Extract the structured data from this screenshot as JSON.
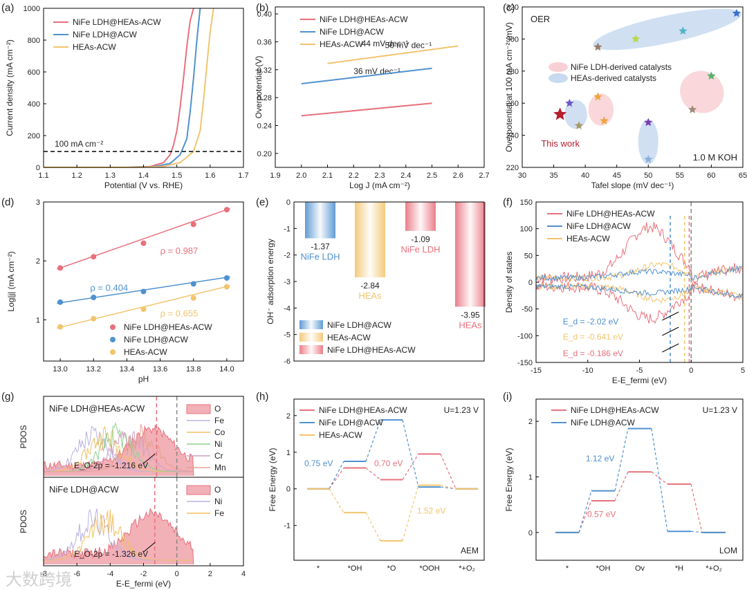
{
  "colors": {
    "red": "#e8707c",
    "blue": "#4f91cf",
    "yellow": "#f2c46d",
    "black": "#000000"
  },
  "chart_data": [
    {
      "panel": "(a)",
      "type": "line",
      "xlabel": "Potential (V vs. RHE)",
      "ylabel": "Current density (mA cm⁻²)",
      "xlim": [
        1.1,
        1.7
      ],
      "ylim": [
        0,
        1000
      ],
      "xticks": [
        "1.1",
        "1.2",
        "1.3",
        "1.4",
        "1.5",
        "1.6",
        "1.7"
      ],
      "yticks": [
        "0",
        "200",
        "400",
        "600",
        "800",
        "1000"
      ],
      "legend": [
        "NiFe LDH@HEAs-ACW",
        "NiFe LDH@ACW",
        "HEAs-ACW"
      ],
      "annotation": "100 mA cm⁻²",
      "reference_line_y": 100,
      "series": [
        {
          "name": "NiFe LDH@HEAs-ACW",
          "color": "red",
          "x": [
            1.1,
            1.35,
            1.42,
            1.46,
            1.48,
            1.49,
            1.5,
            1.51,
            1.52,
            1.53,
            1.54,
            1.55
          ],
          "y": [
            0,
            0,
            5,
            30,
            80,
            140,
            230,
            380,
            560,
            760,
            920,
            1000
          ]
        },
        {
          "name": "NiFe LDH@ACW",
          "color": "blue",
          "x": [
            1.1,
            1.35,
            1.43,
            1.48,
            1.51,
            1.53,
            1.54,
            1.55,
            1.56,
            1.57
          ],
          "y": [
            0,
            0,
            4,
            25,
            80,
            180,
            350,
            560,
            800,
            1000
          ]
        },
        {
          "name": "HEAs-ACW",
          "color": "yellow",
          "x": [
            1.1,
            1.38,
            1.46,
            1.51,
            1.55,
            1.57,
            1.58,
            1.59,
            1.6,
            1.61
          ],
          "y": [
            0,
            0,
            6,
            30,
            100,
            230,
            420,
            640,
            850,
            1000
          ]
        }
      ]
    },
    {
      "panel": "(b)",
      "type": "line",
      "xlabel": "Log J (mA cm⁻²)",
      "ylabel": "Overpotential (V)",
      "xlim": [
        1.9,
        2.7
      ],
      "ylim": [
        0.18,
        0.41
      ],
      "xticks": [
        "1.9",
        "2.0",
        "2.1",
        "2.2",
        "2.3",
        "2.4",
        "2.5",
        "2.6",
        "2.7"
      ],
      "yticks": [
        "0.20",
        "0.24",
        "0.28",
        "0.32",
        "0.36",
        "0.40"
      ],
      "legend": [
        "NiFe LDH@HEAs-ACW",
        "NiFe LDH@ACW",
        "HEAs-ACW"
      ],
      "series": [
        {
          "name": "NiFe LDH@HEAs-ACW",
          "color": "red",
          "x": [
            2.0,
            2.5
          ],
          "y": [
            0.254,
            0.272
          ],
          "label": "36 mV dec⁻¹"
        },
        {
          "name": "NiFe LDH@ACW",
          "color": "blue",
          "x": [
            2.0,
            2.5
          ],
          "y": [
            0.3,
            0.322
          ],
          "label": "44 mV dec⁻¹"
        },
        {
          "name": "HEAs-ACW",
          "color": "yellow",
          "x": [
            2.1,
            2.6
          ],
          "y": [
            0.329,
            0.354
          ],
          "label": "50 mV dec⁻¹"
        }
      ]
    },
    {
      "panel": "(c)",
      "type": "scatter",
      "xlabel": "Tafel slope (mV dec⁻¹)",
      "ylabel": "Overpotential at 100 mA cm⁻² (mV)",
      "xlim": [
        30,
        65
      ],
      "ylim": [
        220,
        320
      ],
      "xticks": [
        "30",
        "35",
        "40",
        "45",
        "50",
        "55",
        "60",
        "65"
      ],
      "yticks": [
        "220",
        "240",
        "260",
        "280",
        "300",
        "320"
      ],
      "texts": [
        "OER",
        "1.0 M KOH",
        "This work"
      ],
      "legend": [
        "NiFe LDH-derived catalysts",
        "HEAs-derived catalysts"
      ],
      "points": [
        {
          "x": 36,
          "y": 253,
          "color": "#b51f2e",
          "main": true
        },
        {
          "x": 37.5,
          "y": 260,
          "color": "#6a5acd"
        },
        {
          "x": 39,
          "y": 246,
          "color": "#a89a6a"
        },
        {
          "x": 42,
          "y": 264,
          "color": "#f0a53c"
        },
        {
          "x": 43,
          "y": 249,
          "color": "#f0a53c"
        },
        {
          "x": 42,
          "y": 295,
          "color": "#9a7b6a"
        },
        {
          "x": 48,
          "y": 300,
          "color": "#b9d84a"
        },
        {
          "x": 50,
          "y": 248,
          "color": "#7a3fb5"
        },
        {
          "x": 50,
          "y": 225,
          "color": "#8ab0d8"
        },
        {
          "x": 55.5,
          "y": 305,
          "color": "#4fb6c8"
        },
        {
          "x": 57,
          "y": 256,
          "color": "#a08a7a"
        },
        {
          "x": 60,
          "y": 277,
          "color": "#56b36a"
        },
        {
          "x": 64,
          "y": 316,
          "color": "#3a6fd0"
        }
      ]
    },
    {
      "panel": "(d)",
      "type": "scatter",
      "xlabel": "pH",
      "ylabel": "Log|j| (mA cm⁻²)",
      "xlim": [
        12.9,
        14.1
      ],
      "ylim": [
        0.3,
        3.0
      ],
      "xticks": [
        "13.0",
        "13.2",
        "13.4",
        "13.6",
        "13.8",
        "14.0"
      ],
      "yticks": [
        "1",
        "2",
        "3"
      ],
      "legend": [
        "NiFe LDH@HEAs-ACW",
        "NiFe LDH@ACW",
        "HEAs-ACW"
      ],
      "series": [
        {
          "name": "NiFe LDH@HEAs-ACW",
          "color": "red",
          "x": [
            13.0,
            13.2,
            13.5,
            13.8,
            14.0
          ],
          "y": [
            1.88,
            2.07,
            2.3,
            2.62,
            2.87
          ],
          "label": "ρ = 0.987"
        },
        {
          "name": "NiFe LDH@ACW",
          "color": "blue",
          "x": [
            13.0,
            13.2,
            13.5,
            13.8,
            14.0
          ],
          "y": [
            1.3,
            1.38,
            1.48,
            1.61,
            1.71
          ],
          "label": "ρ = 0.404"
        },
        {
          "name": "HEAs-ACW",
          "color": "yellow",
          "x": [
            13.0,
            13.2,
            13.5,
            13.8,
            14.0
          ],
          "y": [
            0.88,
            1.02,
            1.18,
            1.37,
            1.56
          ],
          "label": "ρ = 0.655"
        }
      ]
    },
    {
      "panel": "(e)",
      "type": "bar",
      "ylabel": "OH⁻ adsorption energy",
      "ylim": [
        -6,
        0
      ],
      "yticks": [
        "0",
        "-1",
        "-2",
        "-3",
        "-4",
        "-5",
        "-6"
      ],
      "categories": [
        "NiFe LDH",
        "HEAs",
        "NiFe LDH",
        "HEAs"
      ],
      "values": [
        -1.37,
        -2.84,
        -1.09,
        -3.95
      ],
      "value_labels": [
        "-1.37",
        "-2.84",
        "-1.09",
        "-3.95"
      ],
      "bar_colors": [
        "blue",
        "yellow",
        "red",
        "red"
      ],
      "legend": [
        "NiFe LDH@ACW",
        "HEAs-ACW",
        "NiFe LDH@HEAs-ACW"
      ]
    },
    {
      "panel": "(f)",
      "type": "line",
      "xlabel": "E-E_fermi (eV)",
      "ylabel": "Density of states",
      "xlim": [
        -15,
        5
      ],
      "ylim": [
        -150,
        150
      ],
      "xticks": [
        "-15",
        "-10",
        "-5",
        "0",
        "5"
      ],
      "yticks": [
        "150",
        "100",
        "50",
        "0",
        "-50",
        "-100",
        "-150"
      ],
      "legend": [
        "NiFe LDH@HEAs-ACW",
        "NiFe LDH@ACW",
        "HEAs-ACW"
      ],
      "annotations": [
        "E_d = -2.02 eV",
        "E_d = -0.641 eV",
        "E_d = -0.186 eV"
      ],
      "d_band_centers": [
        -2.02,
        -0.641,
        -0.186
      ]
    },
    {
      "panel": "(g)",
      "type": "area",
      "xlabel": "E-E_fermi (eV)",
      "ylabel": "PDOS",
      "xlim": [
        -8,
        4
      ],
      "xticks": [
        "-8",
        "-6",
        "-4",
        "-2",
        "0",
        "2",
        "4"
      ],
      "subpanels": [
        {
          "title": "NiFe LDH@HEAs-ACW",
          "legend": [
            "O",
            "Fe",
            "Co",
            "Ni",
            "Cr",
            "Mn"
          ],
          "annotation": "E_O-2p = -1.216 eV",
          "center": -1.216
        },
        {
          "title": "NiFe LDH@ACW",
          "legend": [
            "O",
            "Ni",
            "Fe"
          ],
          "annotation": "E_O-2p = -1.326 eV",
          "center": -1.326
        }
      ]
    },
    {
      "panel": "(h)",
      "type": "line",
      "ylabel": "Free Energy (eV)",
      "ylim": [
        -1.95,
        2.45
      ],
      "yticks": [
        "-1",
        "0",
        "1",
        "2"
      ],
      "categories": [
        "*",
        "*OH",
        "*O",
        "*OOH",
        "*+O₂"
      ],
      "legend": [
        "NiFe LDH@HEAs-ACW",
        "NiFe LDH@ACW",
        "HEAs-ACW"
      ],
      "texts": [
        "U=1.23 V",
        "AEM",
        "0.75 eV",
        "0.70 eV",
        "1.52 eV"
      ],
      "series": [
        {
          "name": "NiFe LDH@HEAs-ACW",
          "color": "red",
          "values": [
            0,
            0.57,
            0.25,
            0.95,
            0
          ]
        },
        {
          "name": "NiFe LDH@ACW",
          "color": "blue",
          "values": [
            0,
            0.75,
            1.88,
            0.05,
            0
          ]
        },
        {
          "name": "HEAs-ACW",
          "color": "yellow",
          "values": [
            0,
            -0.65,
            -1.42,
            0.1,
            0
          ]
        }
      ]
    },
    {
      "panel": "(i)",
      "type": "line",
      "ylabel": "Free Energy (eV)",
      "ylim": [
        -0.5,
        2.4
      ],
      "yticks": [
        "0",
        "1",
        "2"
      ],
      "categories": [
        "*",
        "*OH",
        "Ov",
        "*H",
        "*+O₂"
      ],
      "legend": [
        "NiFe LDH@HEAs-ACW",
        "NiFe LDH@ACW"
      ],
      "texts": [
        "U=1.23 V",
        "LOM",
        "1.12 eV",
        "0.57 eV"
      ],
      "series": [
        {
          "name": "NiFe LDH@HEAs-ACW",
          "color": "red",
          "values": [
            0,
            0.57,
            1.09,
            0.87,
            0
          ]
        },
        {
          "name": "NiFe LDH@ACW",
          "color": "blue",
          "values": [
            0,
            0.75,
            1.87,
            0.02,
            0
          ]
        }
      ]
    }
  ],
  "watermark": "大数跨境"
}
